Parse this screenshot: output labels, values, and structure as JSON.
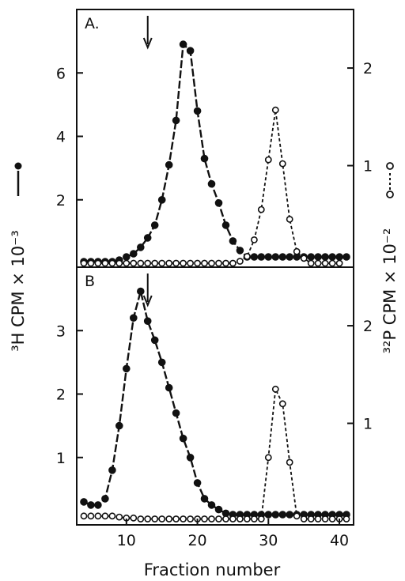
{
  "chart_data": [
    {
      "type": "line",
      "panel_label": "A.",
      "xlim": [
        3,
        42
      ],
      "ylim_left": [
        0,
        8
      ],
      "ylim_right": [
        0,
        2.6
      ],
      "left_ticks": [
        "2",
        "4",
        "6"
      ],
      "left_tick_values": [
        2,
        4,
        6
      ],
      "right_ticks": [
        "1",
        "2"
      ],
      "right_tick_values": [
        1,
        2
      ],
      "arrow_x": 13,
      "series": [
        {
          "axis": "left",
          "marker": "filled-circle",
          "style": "solid-dashed",
          "points": [
            [
              4,
              0.05
            ],
            [
              5,
              0.05
            ],
            [
              6,
              0.05
            ],
            [
              7,
              0.05
            ],
            [
              8,
              0.05
            ],
            [
              9,
              0.1
            ],
            [
              10,
              0.2
            ],
            [
              11,
              0.3
            ],
            [
              12,
              0.5
            ],
            [
              13,
              0.8
            ],
            [
              14,
              1.2
            ],
            [
              15,
              2
            ],
            [
              16,
              3.1
            ],
            [
              17,
              4.5
            ],
            [
              18,
              6.9
            ],
            [
              19,
              6.7
            ],
            [
              20,
              4.8
            ],
            [
              21,
              3.3
            ],
            [
              22,
              2.5
            ],
            [
              23,
              1.9
            ],
            [
              24,
              1.2
            ],
            [
              25,
              0.7
            ],
            [
              26,
              0.4
            ],
            [
              27,
              0.2
            ],
            [
              28,
              0.2
            ],
            [
              29,
              0.2
            ],
            [
              30,
              0.2
            ],
            [
              31,
              0.2
            ],
            [
              32,
              0.2
            ],
            [
              33,
              0.2
            ],
            [
              34,
              0.2
            ],
            [
              35,
              0.2
            ],
            [
              36,
              0.2
            ],
            [
              37,
              0.2
            ],
            [
              38,
              0.2
            ],
            [
              39,
              0.2
            ],
            [
              40,
              0.2
            ],
            [
              41,
              0.2
            ]
          ]
        },
        {
          "axis": "right",
          "marker": "open-circle",
          "style": "dashed",
          "points": [
            [
              4,
              0.0
            ],
            [
              5,
              0.0
            ],
            [
              6,
              0.0
            ],
            [
              7,
              0.0
            ],
            [
              8,
              0.0
            ],
            [
              9,
              0.0
            ],
            [
              10,
              0.0
            ],
            [
              11,
              0.0
            ],
            [
              12,
              0.0
            ],
            [
              13,
              0.0
            ],
            [
              14,
              0.0
            ],
            [
              15,
              0.0
            ],
            [
              16,
              0.0
            ],
            [
              17,
              0.0
            ],
            [
              18,
              0.0
            ],
            [
              19,
              0.0
            ],
            [
              20,
              0.0
            ],
            [
              21,
              0.0
            ],
            [
              22,
              0.0
            ],
            [
              23,
              0.0
            ],
            [
              24,
              0.0
            ],
            [
              25,
              0.0
            ],
            [
              26,
              0.02
            ],
            [
              27,
              0.07
            ],
            [
              28,
              0.24
            ],
            [
              29,
              0.55
            ],
            [
              30,
              1.06
            ],
            [
              31,
              1.57
            ],
            [
              32,
              1.02
            ],
            [
              33,
              0.45
            ],
            [
              34,
              0.12
            ],
            [
              35,
              0.05
            ],
            [
              36,
              0.0
            ],
            [
              37,
              0.0
            ],
            [
              38,
              0.0
            ],
            [
              39,
              0.0
            ],
            [
              40,
              0.0
            ]
          ]
        }
      ]
    },
    {
      "type": "line",
      "panel_label": "B",
      "xlim": [
        3,
        42
      ],
      "ylim_left": [
        0,
        4
      ],
      "ylim_right": [
        0,
        2.6
      ],
      "left_ticks": [
        "1",
        "2",
        "3"
      ],
      "left_tick_values": [
        1,
        2,
        3
      ],
      "right_ticks": [
        "1",
        "2"
      ],
      "right_tick_values": [
        1,
        2
      ],
      "arrow_x": 13,
      "series": [
        {
          "axis": "left",
          "marker": "filled-circle",
          "style": "solid-dashed",
          "points": [
            [
              4,
              0.3
            ],
            [
              5,
              0.25
            ],
            [
              6,
              0.25
            ],
            [
              7,
              0.35
            ],
            [
              8,
              0.8
            ],
            [
              9,
              1.5
            ],
            [
              10,
              2.4
            ],
            [
              11,
              3.2
            ],
            [
              12,
              3.62
            ],
            [
              13,
              3.15
            ],
            [
              14,
              2.85
            ],
            [
              15,
              2.5
            ],
            [
              16,
              2.1
            ],
            [
              17,
              1.7
            ],
            [
              18,
              1.3
            ],
            [
              19,
              1.0
            ],
            [
              20,
              0.6
            ],
            [
              21,
              0.35
            ],
            [
              22,
              0.25
            ],
            [
              23,
              0.18
            ],
            [
              24,
              0.12
            ],
            [
              25,
              0.1
            ],
            [
              26,
              0.1
            ],
            [
              27,
              0.1
            ],
            [
              28,
              0.1
            ],
            [
              29,
              0.1
            ],
            [
              30,
              0.1
            ],
            [
              31,
              0.1
            ],
            [
              32,
              0.1
            ],
            [
              33,
              0.1
            ],
            [
              34,
              0.1
            ],
            [
              35,
              0.1
            ],
            [
              36,
              0.1
            ],
            [
              37,
              0.1
            ],
            [
              38,
              0.1
            ],
            [
              39,
              0.1
            ],
            [
              40,
              0.1
            ],
            [
              41,
              0.1
            ]
          ]
        },
        {
          "axis": "right",
          "marker": "open-circle",
          "style": "dashed",
          "points": [
            [
              4,
              0.05
            ],
            [
              5,
              0.05
            ],
            [
              6,
              0.05
            ],
            [
              7,
              0.05
            ],
            [
              8,
              0.05
            ],
            [
              9,
              0.04
            ],
            [
              10,
              0.03
            ],
            [
              11,
              0.03
            ],
            [
              12,
              0.02
            ],
            [
              13,
              0.02
            ],
            [
              14,
              0.02
            ],
            [
              15,
              0.02
            ],
            [
              16,
              0.02
            ],
            [
              17,
              0.02
            ],
            [
              18,
              0.02
            ],
            [
              19,
              0.02
            ],
            [
              20,
              0.02
            ],
            [
              21,
              0.02
            ],
            [
              22,
              0.02
            ],
            [
              23,
              0.02
            ],
            [
              24,
              0.02
            ],
            [
              25,
              0.02
            ],
            [
              26,
              0.02
            ],
            [
              27,
              0.02
            ],
            [
              28,
              0.02
            ],
            [
              29,
              0.02
            ],
            [
              30,
              0.65
            ],
            [
              31,
              1.35
            ],
            [
              32,
              1.2
            ],
            [
              33,
              0.6
            ],
            [
              34,
              0.05
            ],
            [
              35,
              0.02
            ],
            [
              36,
              0.02
            ],
            [
              37,
              0.02
            ],
            [
              38,
              0.02
            ],
            [
              39,
              0.02
            ],
            [
              40,
              0.02
            ],
            [
              41,
              0.02
            ]
          ]
        }
      ]
    }
  ],
  "axes": {
    "x_ticks": [
      "10",
      "20",
      "30",
      "40"
    ],
    "x_tick_values": [
      10,
      20,
      30,
      40
    ],
    "xlabel": "Fraction number",
    "ylabel_left": "³H CPM × 10⁻³",
    "ylabel_right": "³²P CPM × 10⁻²"
  }
}
